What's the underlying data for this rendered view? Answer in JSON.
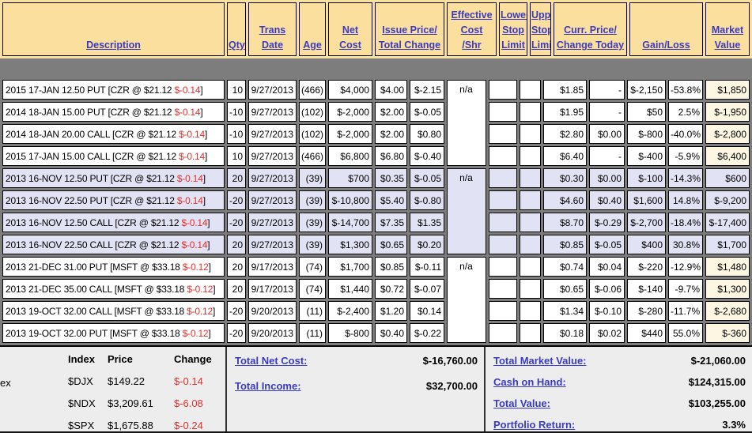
{
  "colors": {
    "header_bg": "#FBDF9F",
    "row_alt_bg": "#E2E2F5",
    "page_bg": "#7D7D7D",
    "link_blue": "#3B3BC0",
    "negative_red": "#E8302E",
    "positive_green": "#1E9048",
    "summary_bg": "#EDEDED",
    "market_value_tint": "#FCF6E2"
  },
  "table": {
    "columns": [
      {
        "key": "description",
        "lines": [
          "Description"
        ]
      },
      {
        "key": "qty",
        "lines": [
          "Qty"
        ]
      },
      {
        "key": "trans-date",
        "lines": [
          "Trans",
          "Date"
        ]
      },
      {
        "key": "age",
        "lines": [
          "Age"
        ]
      },
      {
        "key": "net-cost",
        "lines": [
          "Net",
          "Cost"
        ]
      },
      {
        "key": "issue-price-total-change",
        "lines": [
          "Issue Price/",
          "Total Change"
        ]
      },
      {
        "key": "effective-cost-shr",
        "lines": [
          "Effective",
          "Cost",
          "/Shr"
        ]
      },
      {
        "key": "lower-stop-limit",
        "lines": [
          "Lower",
          "Stop",
          "Limit"
        ]
      },
      {
        "key": "upper-stop-limit",
        "lines": [
          "Upper",
          "Stop",
          "Limit"
        ]
      },
      {
        "key": "curr-price-change-today",
        "lines": [
          "Curr. Price/",
          "Change Today"
        ]
      },
      {
        "key": "gain-loss",
        "lines": [
          "Gain/Loss"
        ]
      },
      {
        "key": "market-value",
        "lines": [
          "Market",
          "Value"
        ]
      }
    ],
    "effective_cost_placeholder": "n/a",
    "rows": [
      {
        "desc_pre": "2015 17-JAN 12.50 PUT [CZR @ $21.12 ",
        "desc_change": "$-0.14",
        "desc_close": "]",
        "qty": "10",
        "date": "9/27/2013",
        "age": "(466)",
        "net_cost": "$4,000",
        "issue_price": "$4.00",
        "total_change": "$-2.15",
        "curr_price": "$1.85",
        "change_today": "-",
        "gain": "$-2,150",
        "gain_pct": "-53.8%",
        "market_value": "$1,850"
      },
      {
        "desc_pre": "2014 18-JAN 15.00 PUT [CZR @ $21.12 ",
        "desc_change": "$-0.14",
        "desc_close": "]",
        "qty": "-10",
        "date": "9/27/2013",
        "age": "(102)",
        "net_cost": "$-2,000",
        "issue_price": "$2.00",
        "total_change": "$-0.05",
        "curr_price": "$1.95",
        "change_today": "-",
        "gain": "$50",
        "gain_pct": "2.5%",
        "market_value": "$-1,950"
      },
      {
        "desc_pre": "2014 18-JAN 20.00 CALL [CZR @ $21.12 ",
        "desc_change": "$-0.14",
        "desc_close": "]",
        "qty": "-10",
        "date": "9/27/2013",
        "age": "(102)",
        "net_cost": "$-2,000",
        "issue_price": "$2.00",
        "total_change": "$0.80",
        "curr_price": "$2.80",
        "change_today": "$0.00",
        "gain": "$-800",
        "gain_pct": "-40.0%",
        "market_value": "$-2,800"
      },
      {
        "desc_pre": "2015 17-JAN 15.00 CALL [CZR @ $21.12 ",
        "desc_change": "$-0.14",
        "desc_close": "]",
        "qty": "10",
        "date": "9/27/2013",
        "age": "(466)",
        "net_cost": "$6,800",
        "issue_price": "$6.80",
        "total_change": "$-0.40",
        "curr_price": "$6.40",
        "change_today": "-",
        "gain": "$-400",
        "gain_pct": "-5.9%",
        "market_value": "$6,400"
      },
      {
        "desc_pre": "2013 16-NOV 12.50 PUT [CZR @ $21.12 ",
        "desc_change": "$-0.14",
        "desc_close": "]",
        "qty": "20",
        "date": "9/27/2013",
        "age": "(39)",
        "net_cost": "$700",
        "issue_price": "$0.35",
        "total_change": "$-0.05",
        "curr_price": "$0.30",
        "change_today": "$0.00",
        "gain": "$-100",
        "gain_pct": "-14.3%",
        "market_value": "$600"
      },
      {
        "desc_pre": "2013 16-NOV 22.50 PUT [CZR @ $21.12 ",
        "desc_change": "$-0.14",
        "desc_close": "]",
        "qty": "-20",
        "date": "9/27/2013",
        "age": "(39)",
        "net_cost": "$-10,800",
        "issue_price": "$5.40",
        "total_change": "$-0.80",
        "curr_price": "$4.60",
        "change_today": "$0.40",
        "gain": "$1,600",
        "gain_pct": "14.8%",
        "market_value": "$-9,200"
      },
      {
        "desc_pre": "2013 16-NOV 12.50 CALL [CZR @ $21.12 ",
        "desc_change": "$-0.14",
        "desc_close": "]",
        "qty": "-20",
        "date": "9/27/2013",
        "age": "(39)",
        "net_cost": "$-14,700",
        "issue_price": "$7.35",
        "total_change": "$1.35",
        "curr_price": "$8.70",
        "change_today": "$-0.29",
        "gain": "$-2,700",
        "gain_pct": "-18.4%",
        "market_value": "$-17,400"
      },
      {
        "desc_pre": "2013 16-NOV 22.50 CALL [CZR @ $21.12 ",
        "desc_change": "$-0.14",
        "desc_close": "]",
        "qty": "20",
        "date": "9/27/2013",
        "age": "(39)",
        "net_cost": "$1,300",
        "issue_price": "$0.65",
        "total_change": "$0.20",
        "curr_price": "$0.85",
        "change_today": "$-0.05",
        "gain": "$400",
        "gain_pct": "30.8%",
        "market_value": "$1,700"
      },
      {
        "desc_pre": "2013 21-DEC 31.00 PUT [MSFT @ $33.18 ",
        "desc_change": "$-0.12",
        "desc_close": "]",
        "qty": "20",
        "date": "9/17/2013",
        "age": "(74)",
        "net_cost": "$1,700",
        "issue_price": "$0.85",
        "total_change": "$-0.11",
        "curr_price": "$0.74",
        "change_today": "$0.04",
        "gain": "$-220",
        "gain_pct": "-12.9%",
        "market_value": "$1,480"
      },
      {
        "desc_pre": "2013 21-DEC 35.00 CALL [MSFT @ $33.18 ",
        "desc_change": "$-0.12",
        "desc_close": "]",
        "qty": "20",
        "date": "9/17/2013",
        "age": "(74)",
        "net_cost": "$1,440",
        "issue_price": "$0.72",
        "total_change": "$-0.07",
        "curr_price": "$0.65",
        "change_today": "$-0.06",
        "gain": "$-140",
        "gain_pct": "-9.7%",
        "market_value": "$1,300"
      },
      {
        "desc_pre": "2013 19-OCT 32.00 CALL [MSFT @ $33.18 ",
        "desc_change": "$-0.12",
        "desc_close": "]",
        "qty": "-20",
        "date": "9/20/2013",
        "age": "(11)",
        "net_cost": "$-2,400",
        "issue_price": "$1.20",
        "total_change": "$0.14",
        "curr_price": "$1.34",
        "change_today": "$-0.10",
        "gain": "$-280",
        "gain_pct": "-11.7%",
        "market_value": "$-2,680"
      },
      {
        "desc_pre": "2013 19-OCT 32.00 PUT [MSFT @ $33.18 ",
        "desc_change": "$-0.12",
        "desc_close": "]",
        "qty": "-20",
        "date": "9/20/2013",
        "age": "(11)",
        "net_cost": "$-800",
        "issue_price": "$0.40",
        "total_change": "$-0.22",
        "curr_price": "$0.18",
        "change_today": "$0.02",
        "gain": "$440",
        "gain_pct": "55.0%",
        "market_value": "$-360"
      }
    ]
  },
  "summary": {
    "cutoff": "ex",
    "indexes": {
      "headers": [
        "Index",
        "Price",
        "Change"
      ],
      "rows": [
        {
          "sym": "$DJX",
          "price": "$149.22",
          "change": "$-0.14"
        },
        {
          "sym": "$NDX",
          "price": "$3,209.61",
          "change": "$-6.08"
        },
        {
          "sym": "$SPX",
          "price": "$1,675.88",
          "change": "$-0.24"
        }
      ]
    },
    "totals_left": [
      {
        "label": "Total Net Cost:",
        "value": "$-16,760.00"
      },
      {
        "label": "Total Income:",
        "value": "$32,700.00"
      }
    ],
    "totals_right": [
      {
        "label": "Total Market Value:",
        "value": "$-21,060.00"
      },
      {
        "label": "Cash on Hand:",
        "value": "$124,315.00"
      },
      {
        "label": "Total Value:",
        "value": "$103,255.00"
      },
      {
        "label": "Portfolio Return:",
        "value": "3.3%"
      }
    ]
  }
}
